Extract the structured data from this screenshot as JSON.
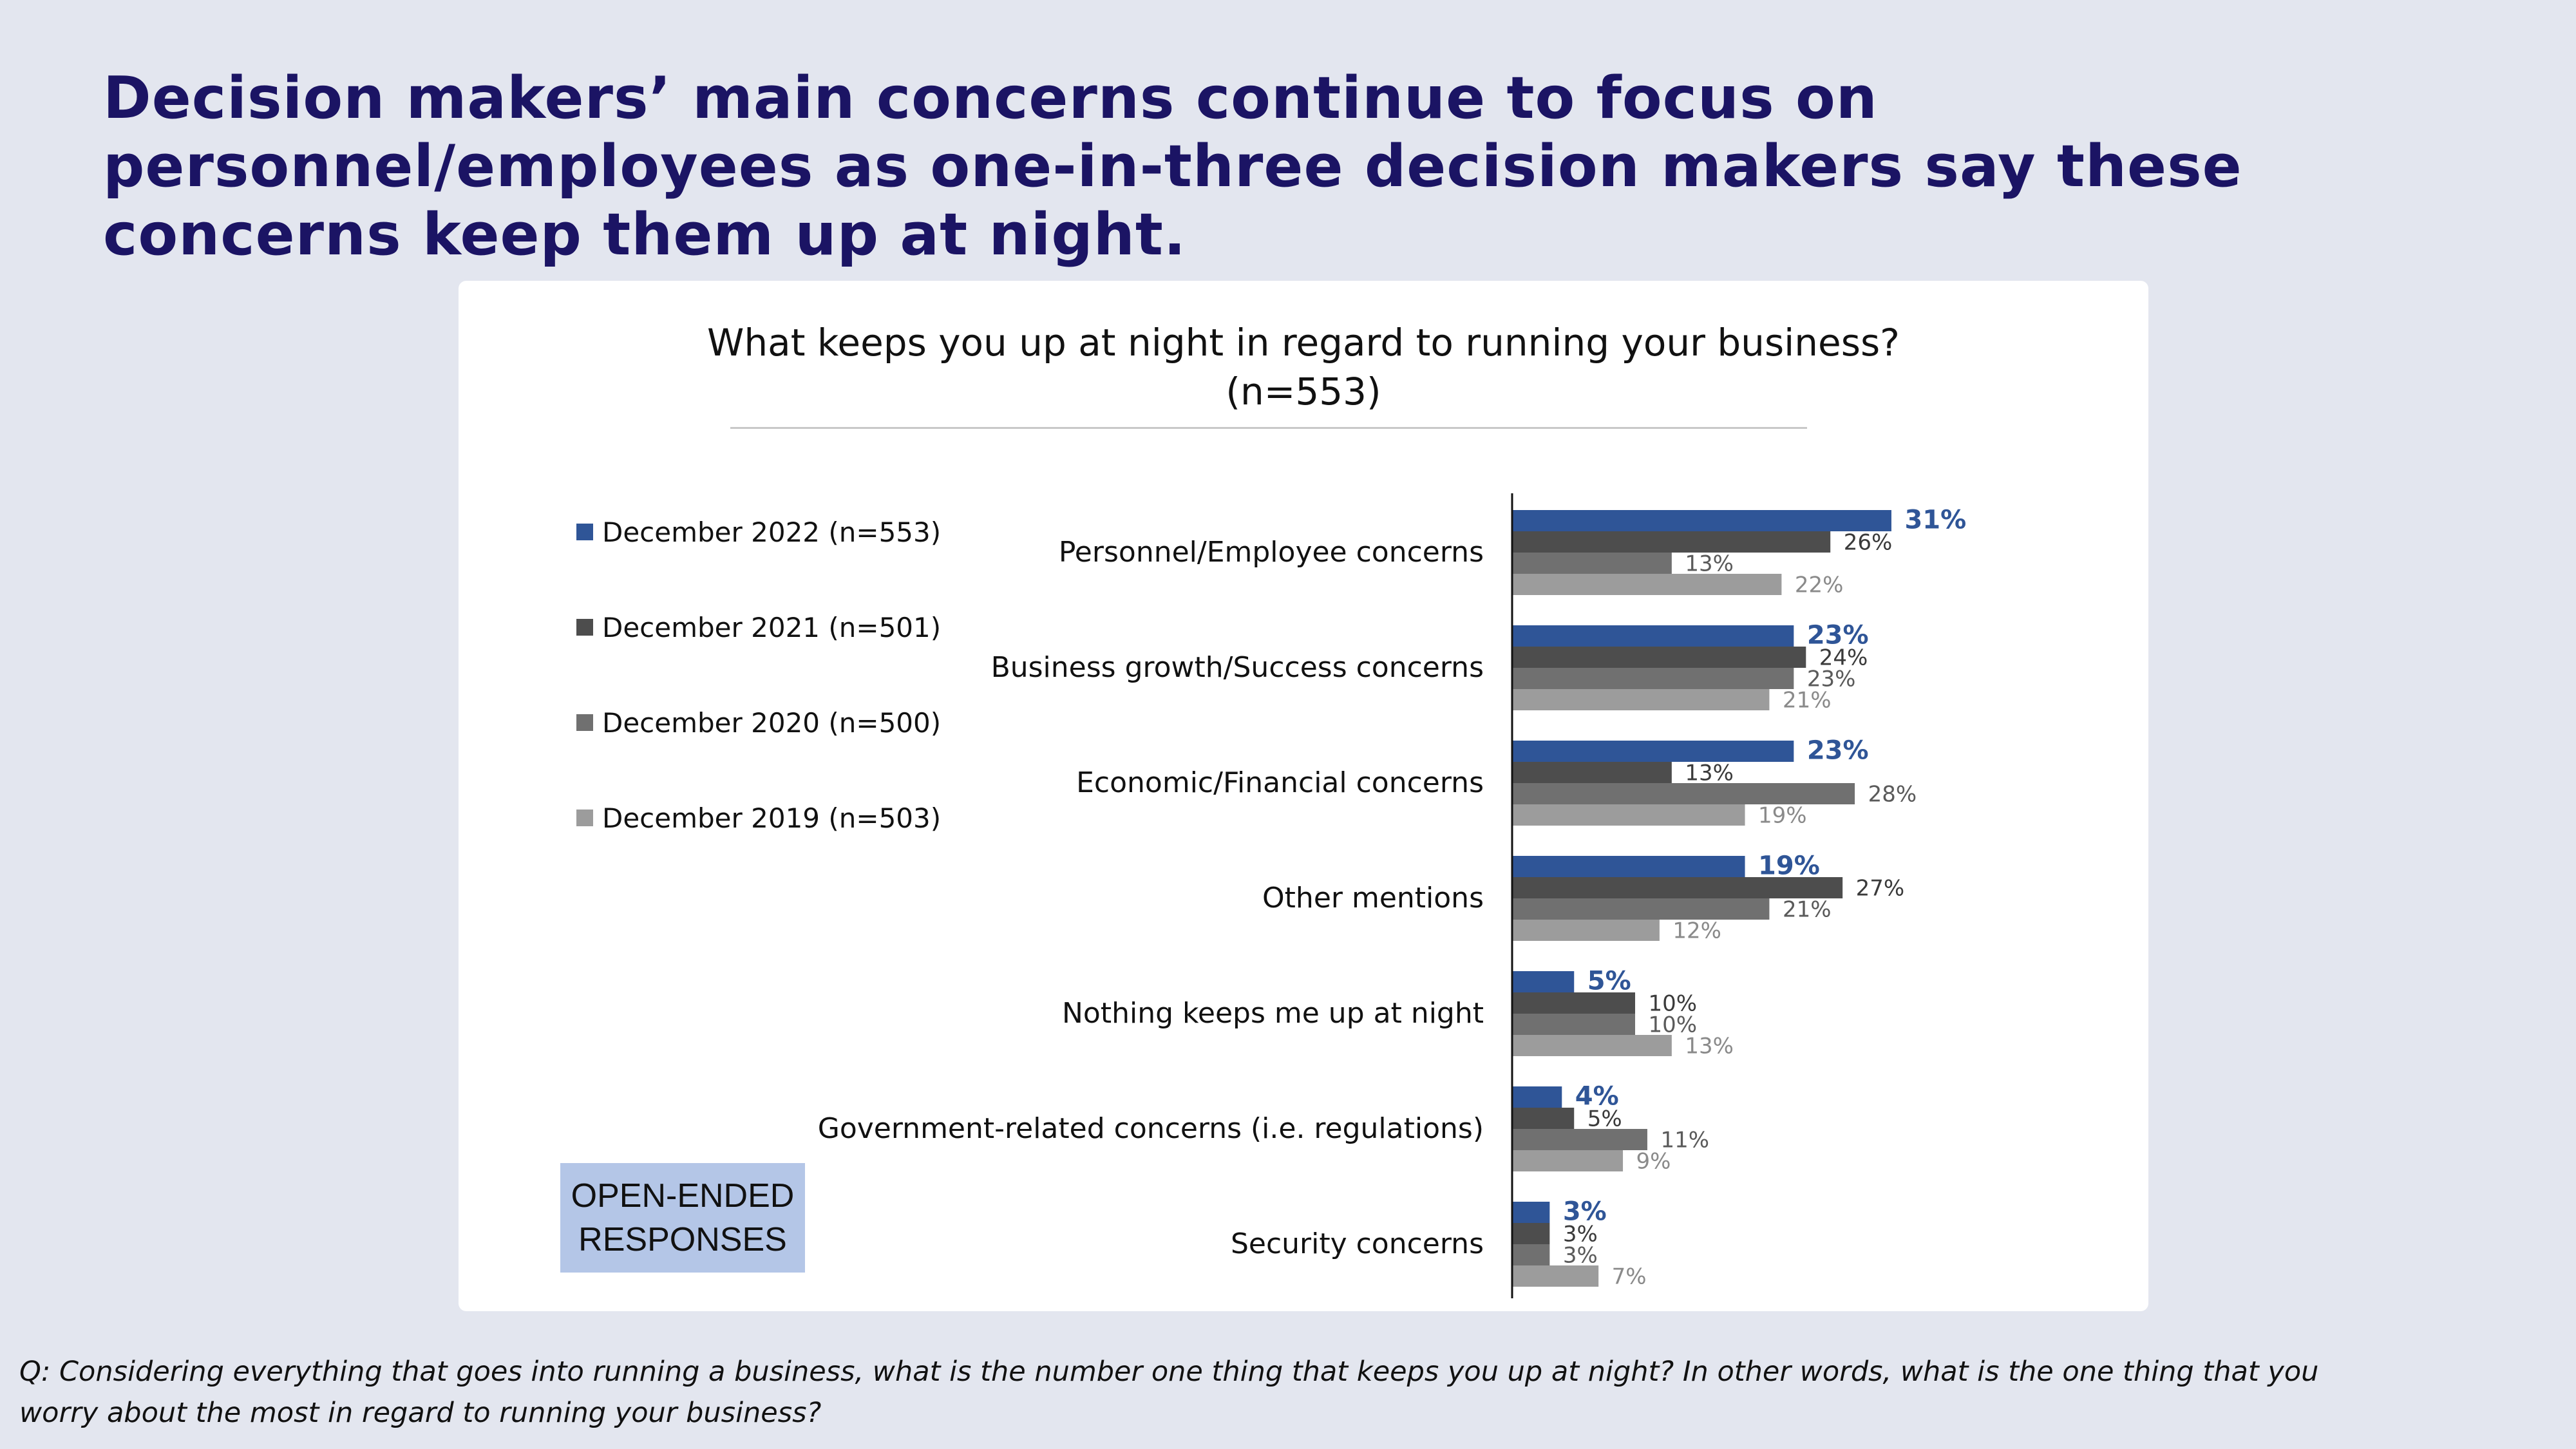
{
  "headline": "Decision makers’ main concerns continue to focus on personnel/employees as one-in-three decision makers say these concerns keep them up at night.",
  "badge": [
    "OPEN-ENDED",
    "RESPONSES"
  ],
  "footnote": "Q:  Considering everything that goes into running a business, what is the number one thing that keeps you up at night? In other words, what is the one thing that you worry about the most in regard to running your business?",
  "colors": {
    "series": [
      "#2f5597",
      "#4d4d4d",
      "#707070",
      "#9c9c9c"
    ],
    "labels": [
      "#2f5597",
      "#3a3a3a",
      "#5a5a5a",
      "#8a8a8a"
    ]
  },
  "chart_data": {
    "type": "bar",
    "orientation": "horizontal",
    "title": "What keeps you up at night in regard to running your business?",
    "subtitle": "(n=553)",
    "legend_position": "left",
    "grid": false,
    "xlim": [
      0,
      35
    ],
    "categories": [
      "Personnel/Employee concerns",
      "Business growth/Success concerns",
      "Economic/Financial concerns",
      "Other mentions",
      "Nothing keeps me up at night",
      "Government-related concerns (i.e. regulations)",
      "Security concerns"
    ],
    "series": [
      {
        "name": "December 2022 (n=553)",
        "values": [
          31,
          23,
          23,
          19,
          5,
          4,
          3
        ]
      },
      {
        "name": "December 2021 (n=501)",
        "values": [
          26,
          24,
          13,
          27,
          10,
          5,
          3
        ]
      },
      {
        "name": "December 2020 (n=500)",
        "values": [
          13,
          23,
          28,
          21,
          10,
          11,
          3
        ]
      },
      {
        "name": "December 2019 (n=503)",
        "values": [
          22,
          21,
          19,
          12,
          13,
          9,
          7
        ]
      }
    ],
    "value_suffix": "%"
  }
}
